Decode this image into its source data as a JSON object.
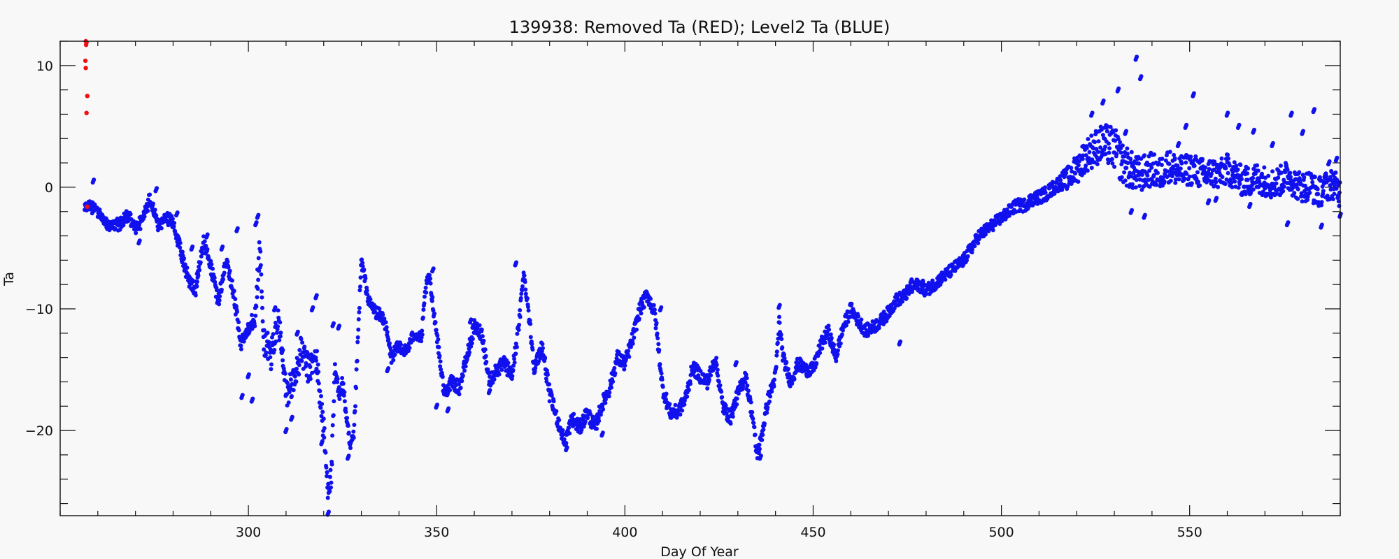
{
  "chart_data": {
    "type": "scatter",
    "title": "139938: Removed Ta (RED); Level2 Ta (BLUE)",
    "xlabel": "Day Of Year",
    "ylabel": "Ta",
    "xlim": [
      250,
      590
    ],
    "ylim": [
      -27,
      12
    ],
    "xticks": [
      300,
      350,
      400,
      450,
      500,
      550
    ],
    "yticks": [
      10,
      0,
      -10,
      -20
    ],
    "xtick_labels": [
      "300",
      "350",
      "400",
      "450",
      "500",
      "550"
    ],
    "ytick_labels": [
      "10",
      "0",
      "−10",
      "−20"
    ],
    "x_minor_step": 10,
    "y_minor_step": 2,
    "grid": false,
    "colors": {
      "removed": "#ee1111",
      "level2": "#1111ee",
      "axes": "#111111",
      "background": "#f8f8f8"
    },
    "series": [
      {
        "key": "removed",
        "points": [
          [
            256.8,
            12.0
          ],
          [
            256.9,
            11.7
          ],
          [
            257.0,
            11.9
          ],
          [
            256.7,
            10.4
          ],
          [
            256.8,
            9.8
          ],
          [
            257.2,
            7.5
          ],
          [
            257.0,
            6.1
          ],
          [
            257.2,
            -1.6
          ]
        ]
      },
      {
        "key": "level2",
        "spread": [
          [
            256.5,
            1.0
          ],
          [
            300,
            1.2
          ],
          [
            301,
            2.5
          ],
          [
            320,
            2.5
          ],
          [
            325,
            1.1
          ],
          [
            340,
            1.0
          ],
          [
            350,
            1.0
          ],
          [
            360,
            1.2
          ],
          [
            400,
            1.2
          ],
          [
            500,
            1.0
          ],
          [
            515,
            1.2
          ],
          [
            520,
            2.5
          ],
          [
            530,
            3.5
          ],
          [
            540,
            2.8
          ],
          [
            560,
            2.5
          ],
          [
            590,
            2.5
          ]
        ],
        "trend": [
          [
            256.5,
            -1.5
          ],
          [
            258,
            -1.6
          ],
          [
            260,
            -2.0
          ],
          [
            262,
            -3.0
          ],
          [
            264,
            -3.2
          ],
          [
            266,
            -3.0
          ],
          [
            268,
            -2.2
          ],
          [
            270,
            -3.5
          ],
          [
            272,
            -2.6
          ],
          [
            274,
            -0.8
          ],
          [
            276,
            -3.3
          ],
          [
            278,
            -2.4
          ],
          [
            280,
            -3.0
          ],
          [
            282,
            -5.2
          ],
          [
            284,
            -7.5
          ],
          [
            286,
            -8.4
          ],
          [
            288,
            -4.5
          ],
          [
            290,
            -6.5
          ],
          [
            292,
            -9.5
          ],
          [
            294,
            -6.0
          ],
          [
            296,
            -8.6
          ],
          [
            298,
            -13.0
          ],
          [
            300,
            -11.5
          ],
          [
            302,
            -10.0
          ],
          [
            303,
            -4.8
          ],
          [
            304,
            -12.5
          ],
          [
            306,
            -13.8
          ],
          [
            308,
            -11.0
          ],
          [
            310,
            -17.0
          ],
          [
            312,
            -16.0
          ],
          [
            314,
            -13.5
          ],
          [
            316,
            -15.0
          ],
          [
            318,
            -14.0
          ],
          [
            320,
            -20.0
          ],
          [
            321,
            -24.5
          ],
          [
            322,
            -24.0
          ],
          [
            323,
            -15.0
          ],
          [
            324,
            -17.0
          ],
          [
            325,
            -16.0
          ],
          [
            327,
            -21.5
          ],
          [
            328,
            -20.5
          ],
          [
            330,
            -6.0
          ],
          [
            332,
            -9.5
          ],
          [
            334,
            -10.3
          ],
          [
            336,
            -10.8
          ],
          [
            338,
            -14.0
          ],
          [
            340,
            -13.0
          ],
          [
            342,
            -13.5
          ],
          [
            344,
            -12.0
          ],
          [
            346,
            -12.5
          ],
          [
            347,
            -8.5
          ],
          [
            348,
            -7.3
          ],
          [
            350,
            -12.0
          ],
          [
            352,
            -17.0
          ],
          [
            354,
            -16.0
          ],
          [
            356,
            -16.5
          ],
          [
            358,
            -14.0
          ],
          [
            360,
            -11.5
          ],
          [
            362,
            -12.0
          ],
          [
            364,
            -16.0
          ],
          [
            366,
            -15.0
          ],
          [
            368,
            -14.5
          ],
          [
            370,
            -15.5
          ],
          [
            372,
            -11.0
          ],
          [
            373,
            -7.0
          ],
          [
            374,
            -9.0
          ],
          [
            376,
            -15.0
          ],
          [
            378,
            -13.0
          ],
          [
            380,
            -17.0
          ],
          [
            382,
            -19.0
          ],
          [
            384,
            -21.0
          ],
          [
            386,
            -19.0
          ],
          [
            388,
            -19.8
          ],
          [
            390,
            -18.5
          ],
          [
            392,
            -19.8
          ],
          [
            394,
            -17.8
          ],
          [
            396,
            -16.5
          ],
          [
            398,
            -14.0
          ],
          [
            400,
            -14.5
          ],
          [
            402,
            -12.5
          ],
          [
            404,
            -10.0
          ],
          [
            406,
            -8.8
          ],
          [
            408,
            -10.5
          ],
          [
            410,
            -16.5
          ],
          [
            412,
            -18.5
          ],
          [
            414,
            -18.5
          ],
          [
            416,
            -17.5
          ],
          [
            418,
            -14.8
          ],
          [
            420,
            -15.5
          ],
          [
            422,
            -16.0
          ],
          [
            424,
            -14.0
          ],
          [
            426,
            -18.0
          ],
          [
            428,
            -19.0
          ],
          [
            430,
            -17.0
          ],
          [
            432,
            -15.5
          ],
          [
            434,
            -19.0
          ],
          [
            435,
            -22.0
          ],
          [
            436,
            -21.0
          ],
          [
            438,
            -17.5
          ],
          [
            440,
            -15.5
          ],
          [
            441,
            -11.0
          ],
          [
            442,
            -14.0
          ],
          [
            444,
            -16.0
          ],
          [
            446,
            -14.5
          ],
          [
            448,
            -15.0
          ],
          [
            450,
            -15.0
          ],
          [
            452,
            -13.0
          ],
          [
            454,
            -11.8
          ],
          [
            456,
            -14.0
          ],
          [
            458,
            -11.5
          ],
          [
            460,
            -10.0
          ],
          [
            462,
            -11.0
          ],
          [
            464,
            -11.8
          ],
          [
            466,
            -11.5
          ],
          [
            468,
            -11.0
          ],
          [
            470,
            -10.3
          ],
          [
            472,
            -9.3
          ],
          [
            474,
            -9.0
          ],
          [
            476,
            -8.3
          ],
          [
            478,
            -8.0
          ],
          [
            480,
            -8.5
          ],
          [
            482,
            -8.0
          ],
          [
            484,
            -7.5
          ],
          [
            486,
            -7.0
          ],
          [
            488,
            -6.5
          ],
          [
            490,
            -6.0
          ],
          [
            492,
            -5.0
          ],
          [
            494,
            -4.0
          ],
          [
            496,
            -3.5
          ],
          [
            498,
            -3.0
          ],
          [
            500,
            -2.5
          ],
          [
            502,
            -2.0
          ],
          [
            504,
            -1.5
          ],
          [
            506,
            -1.5
          ],
          [
            508,
            -1.0
          ],
          [
            510,
            -0.8
          ],
          [
            512,
            -0.5
          ],
          [
            514,
            0.0
          ],
          [
            516,
            0.5
          ],
          [
            518,
            0.8
          ],
          [
            520,
            1.5
          ],
          [
            522,
            2.5
          ],
          [
            524,
            3.0
          ],
          [
            526,
            3.5
          ],
          [
            528,
            3.5
          ],
          [
            530,
            3.2
          ],
          [
            532,
            2.0
          ],
          [
            534,
            1.5
          ],
          [
            536,
            1.0
          ],
          [
            538,
            1.2
          ],
          [
            540,
            1.5
          ],
          [
            542,
            1.0
          ],
          [
            544,
            1.8
          ],
          [
            546,
            1.5
          ],
          [
            548,
            1.2
          ],
          [
            550,
            1.5
          ],
          [
            552,
            1.3
          ],
          [
            554,
            1.0
          ],
          [
            556,
            1.2
          ],
          [
            558,
            1.0
          ],
          [
            560,
            1.5
          ],
          [
            562,
            1.0
          ],
          [
            564,
            0.5
          ],
          [
            566,
            0.5
          ],
          [
            568,
            0.8
          ],
          [
            570,
            0.5
          ],
          [
            572,
            0.3
          ],
          [
            574,
            0.5
          ],
          [
            576,
            1.0
          ],
          [
            578,
            0.3
          ],
          [
            580,
            0.0
          ],
          [
            582,
            0.2
          ],
          [
            584,
            -0.5
          ],
          [
            586,
            0.0
          ],
          [
            588,
            0.3
          ],
          [
            590,
            -0.5
          ]
        ],
        "peaks": [
          [
            258.8,
            0.5
          ],
          [
            271,
            -4.5
          ],
          [
            275.5,
            -0.2
          ],
          [
            281,
            -2.2
          ],
          [
            285,
            -5.0
          ],
          [
            286.5,
            -7.0
          ],
          [
            289,
            -4.0
          ],
          [
            293,
            -5.0
          ],
          [
            297,
            -3.5
          ],
          [
            298.3,
            -17.2
          ],
          [
            300,
            -15.5
          ],
          [
            301,
            -17.5
          ],
          [
            302,
            -3.0
          ],
          [
            302.5,
            -2.4
          ],
          [
            307,
            -10.0
          ],
          [
            309,
            -13.5
          ],
          [
            310,
            -20.0
          ],
          [
            311.5,
            -19.0
          ],
          [
            313,
            -12.0
          ],
          [
            317,
            -10.0
          ],
          [
            318,
            -9.0
          ],
          [
            319.5,
            -21.0
          ],
          [
            321.2,
            -26.8
          ],
          [
            322.5,
            -11.3
          ],
          [
            324,
            -11.5
          ],
          [
            326.5,
            -22.2
          ],
          [
            337,
            -15.0
          ],
          [
            349,
            -6.8
          ],
          [
            350,
            -18.0
          ],
          [
            353,
            -18.3
          ],
          [
            359,
            -11.0
          ],
          [
            364,
            -16.8
          ],
          [
            371,
            -6.3
          ],
          [
            384.5,
            -21.5
          ],
          [
            394,
            -20.3
          ],
          [
            405.5,
            -8.7
          ],
          [
            409.5,
            -10.0
          ],
          [
            429.5,
            -14.5
          ],
          [
            436,
            -22.2
          ],
          [
            441,
            -9.8
          ],
          [
            458,
            -11.4
          ],
          [
            473,
            -12.8
          ],
          [
            476,
            -7.7
          ],
          [
            479,
            -7.8
          ],
          [
            524,
            6.0
          ],
          [
            527,
            7.0
          ],
          [
            531,
            8.0
          ],
          [
            533,
            4.5
          ],
          [
            534.5,
            -2.0
          ],
          [
            535.8,
            10.6
          ],
          [
            537,
            9.0
          ],
          [
            538,
            -2.4
          ],
          [
            547,
            3.5
          ],
          [
            549,
            5.0
          ],
          [
            551,
            7.6
          ],
          [
            555,
            -1.2
          ],
          [
            557,
            -1.0
          ],
          [
            560,
            6.0
          ],
          [
            563,
            5.0
          ],
          [
            566,
            -1.5
          ],
          [
            567,
            4.6
          ],
          [
            572,
            3.5
          ],
          [
            576,
            -3.0
          ],
          [
            577,
            6.0
          ],
          [
            580,
            4.5
          ],
          [
            583,
            6.3
          ],
          [
            585,
            -3.2
          ],
          [
            587,
            2.0
          ],
          [
            589,
            2.3
          ],
          [
            590,
            -2.3
          ]
        ]
      }
    ]
  }
}
